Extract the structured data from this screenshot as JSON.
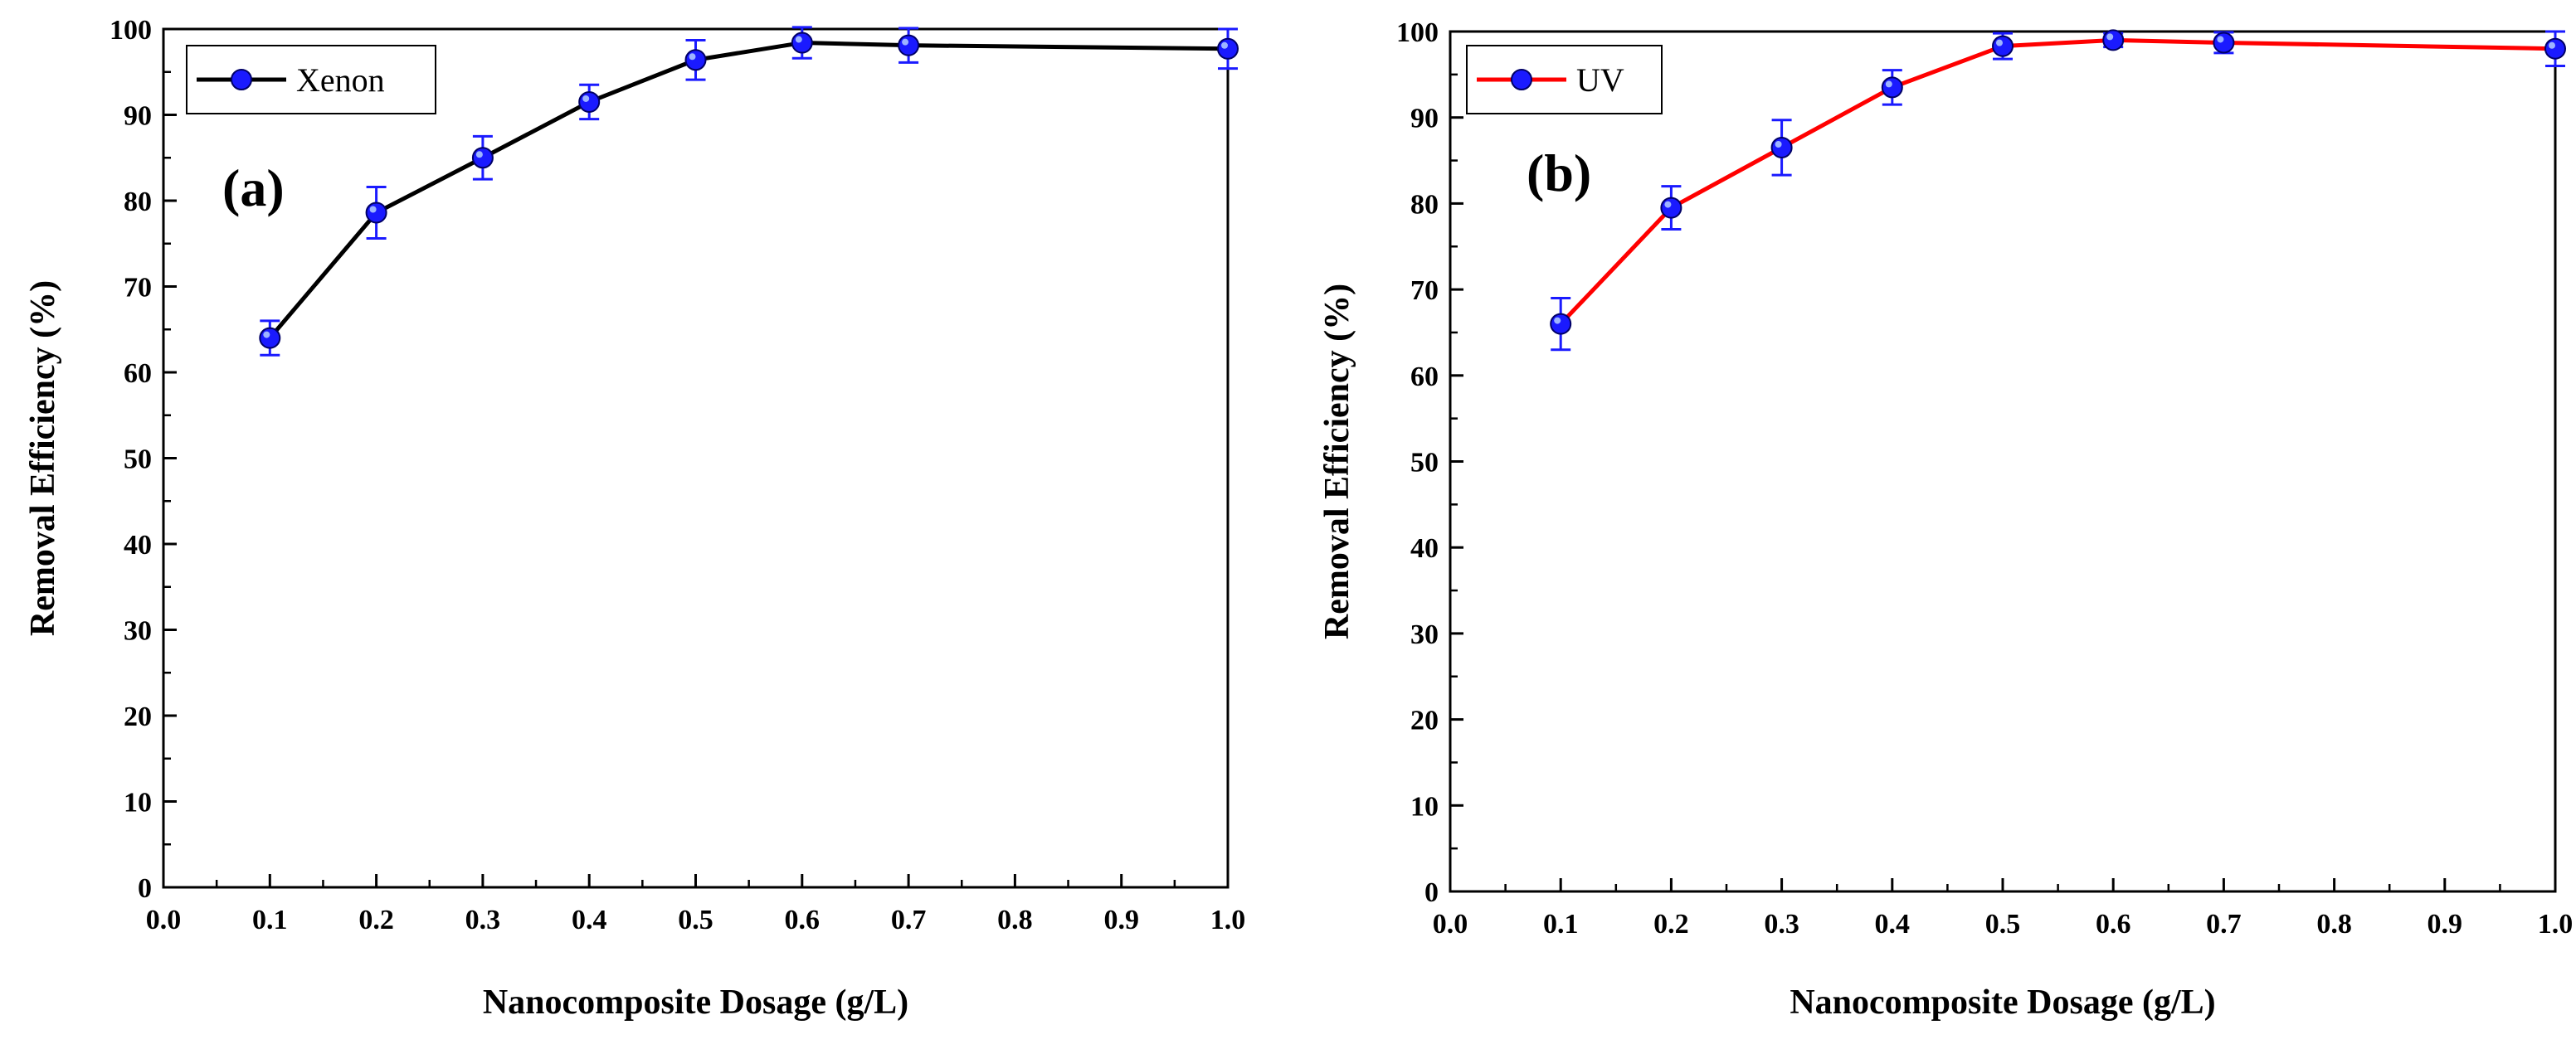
{
  "chart_data": [
    {
      "type": "line",
      "panel_label": "(a)",
      "xlabel": "Nanocomposite Dosage (g/L)",
      "ylabel": "Removal Efficiency (%)",
      "xlim": [
        0.0,
        1.0
      ],
      "ylim": [
        0,
        100
      ],
      "xticks": [
        "0.0",
        "0.1",
        "0.2",
        "0.3",
        "0.4",
        "0.5",
        "0.6",
        "0.7",
        "0.8",
        "0.9",
        "1.0"
      ],
      "yticks": [
        "0",
        "10",
        "20",
        "30",
        "40",
        "50",
        "60",
        "70",
        "80",
        "90",
        "100"
      ],
      "legend_position": "top-left",
      "grid": false,
      "series": [
        {
          "name": "Xenon",
          "line_color": "#000000",
          "marker_color": "#1a1aff",
          "x": [
            0.1,
            0.2,
            0.3,
            0.4,
            0.5,
            0.6,
            0.7,
            1.0
          ],
          "y": [
            64,
            78.6,
            85,
            91.5,
            96.4,
            98.4,
            98.1,
            97.7
          ],
          "error": [
            2,
            3,
            2.5,
            2,
            2.3,
            1.8,
            2,
            2.3
          ]
        }
      ]
    },
    {
      "type": "line",
      "panel_label": "(b)",
      "xlabel": "Nanocomposite Dosage (g/L)",
      "ylabel": "Removal Efficiency (%)",
      "xlim": [
        0.0,
        1.0
      ],
      "ylim": [
        0,
        100
      ],
      "xticks": [
        "0.0",
        "0.1",
        "0.2",
        "0.3",
        "0.4",
        "0.5",
        "0.6",
        "0.7",
        "0.8",
        "0.9",
        "1.0"
      ],
      "yticks": [
        "0",
        "10",
        "20",
        "30",
        "40",
        "50",
        "60",
        "70",
        "80",
        "90",
        "100"
      ],
      "legend_position": "top-left",
      "grid": false,
      "series": [
        {
          "name": "UV",
          "line_color": "#ff0000",
          "marker_color": "#1a1aff",
          "x": [
            0.1,
            0.2,
            0.3,
            0.4,
            0.5,
            0.6,
            0.7,
            1.0
          ],
          "y": [
            66,
            79.5,
            86.5,
            93.5,
            98.3,
            99,
            98.7,
            98
          ],
          "error": [
            3,
            2.5,
            3.2,
            2,
            1.5,
            0.8,
            1.2,
            2
          ]
        }
      ]
    }
  ]
}
